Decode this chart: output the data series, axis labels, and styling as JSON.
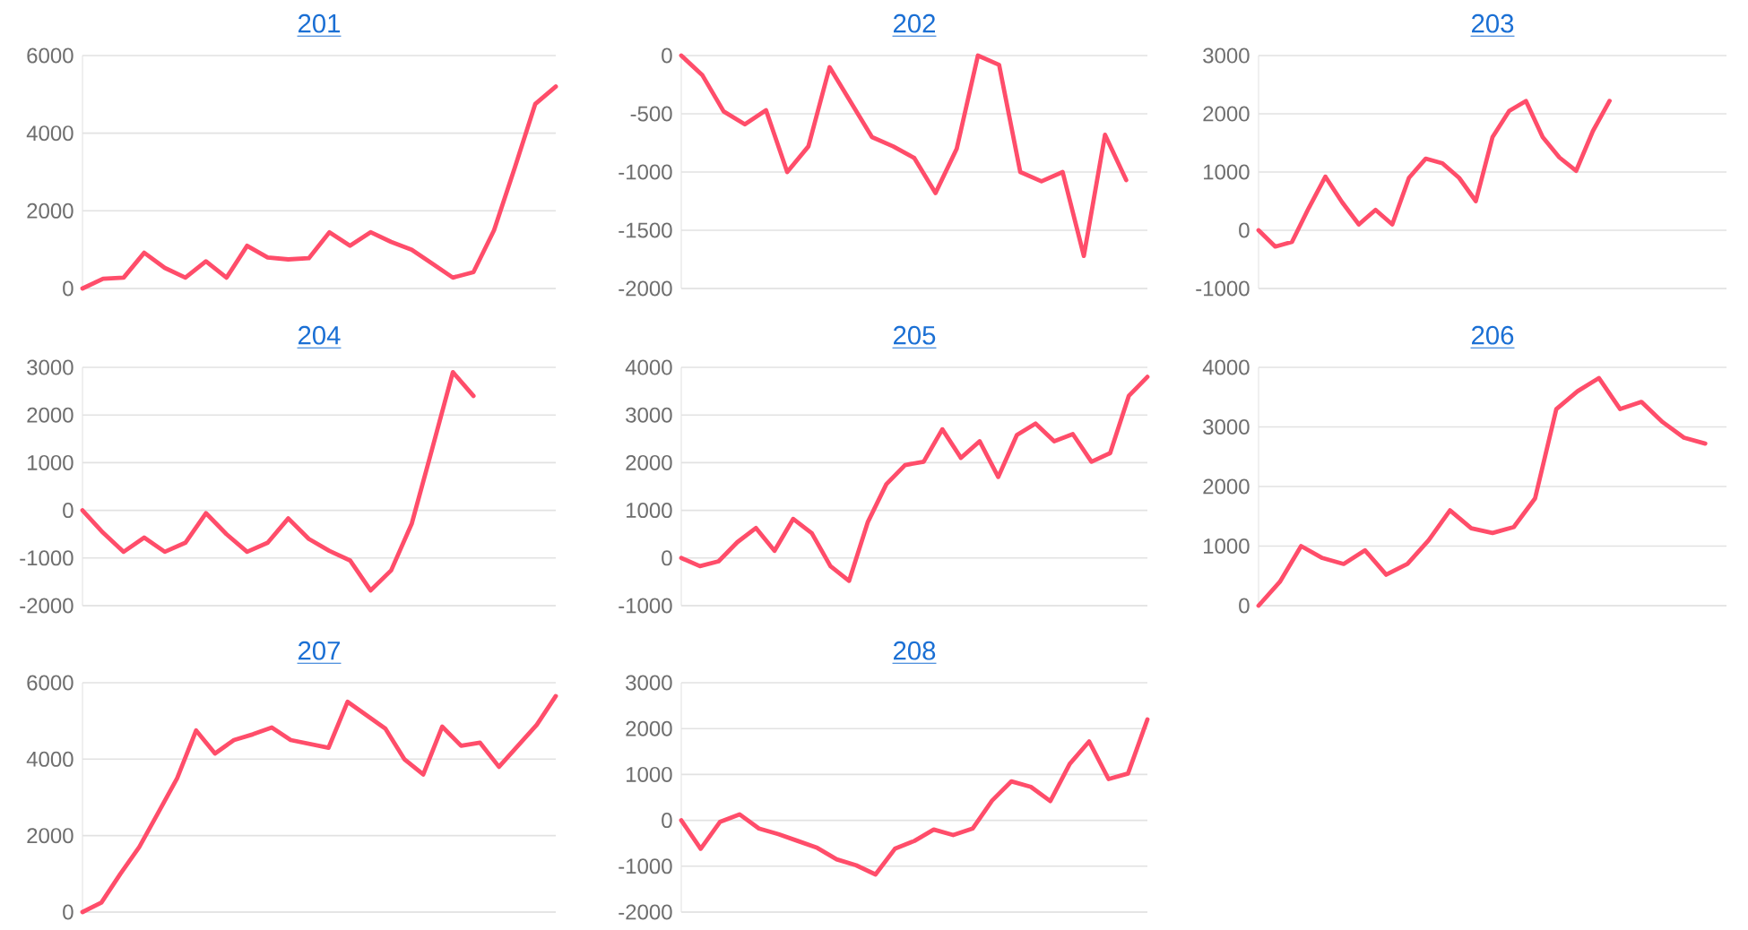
{
  "chart_data": [
    {
      "type": "line",
      "title": "201",
      "categories": [
        null,
        null,
        null,
        null,
        null,
        null,
        null,
        null,
        null,
        null,
        null,
        null,
        null,
        null,
        null,
        null,
        null,
        null,
        null,
        null,
        null,
        null,
        null,
        null
      ],
      "values": [
        0,
        250,
        280,
        920,
        530,
        280,
        700,
        280,
        1100,
        800,
        750,
        780,
        1450,
        1100,
        1450,
        1200,
        1000,
        640,
        280,
        420,
        1500,
        3100,
        4750,
        5200
      ],
      "color": "#ff4d6a",
      "ylim": [
        0,
        6000
      ],
      "yticks": [
        0,
        2000,
        4000,
        6000
      ],
      "grid": "y",
      "tick_labels": "y"
    },
    {
      "type": "line",
      "title": "202",
      "categories": [
        null,
        null,
        null,
        null,
        null,
        null,
        null,
        null,
        null,
        null,
        null,
        null,
        null,
        null,
        null,
        null,
        null,
        null,
        null,
        null,
        null,
        null,
        null
      ],
      "values": [
        0,
        -170,
        -480,
        -590,
        -470,
        -1000,
        -780,
        -100,
        -400,
        -700,
        -780,
        -880,
        -1180,
        -800,
        0,
        -80,
        -1000,
        -1080,
        -1000,
        -1720,
        -680,
        -1070,
        null
      ],
      "color": "#ff4d6a",
      "ylim": [
        -2000,
        0
      ],
      "yticks": [
        -2000,
        -1500,
        -1000,
        -500,
        0
      ],
      "grid": "y",
      "tick_labels": "y"
    },
    {
      "type": "line",
      "title": "203",
      "categories": [
        null,
        null,
        null,
        null,
        null,
        null,
        null,
        null,
        null,
        null,
        null,
        null,
        null,
        null,
        null,
        null,
        null,
        null,
        null,
        null,
        null,
        null,
        null,
        null,
        null,
        null,
        null,
        null,
        null
      ],
      "values": [
        0,
        -280,
        -200,
        380,
        920,
        480,
        100,
        350,
        100,
        900,
        1230,
        1150,
        900,
        500,
        1600,
        2050,
        2220,
        1600,
        1250,
        1020,
        1700,
        2220,
        null,
        null,
        null,
        null,
        null,
        null,
        null
      ],
      "color": "#ff4d6a",
      "ylim": [
        -1000,
        3000
      ],
      "yticks": [
        -1000,
        0,
        1000,
        2000,
        3000
      ],
      "grid": "y",
      "tick_labels": "y"
    },
    {
      "type": "line",
      "title": "204",
      "categories": [
        null,
        null,
        null,
        null,
        null,
        null,
        null,
        null,
        null,
        null,
        null,
        null,
        null,
        null,
        null,
        null,
        null,
        null,
        null,
        null,
        null,
        null,
        null,
        null
      ],
      "values": [
        0,
        -470,
        -870,
        -570,
        -870,
        -680,
        -60,
        -500,
        -870,
        -680,
        -170,
        -600,
        -850,
        -1050,
        -1680,
        -1260,
        -280,
        1300,
        2900,
        2400,
        null,
        null,
        null,
        null
      ],
      "color": "#ff4d6a",
      "ylim": [
        -2000,
        3000
      ],
      "yticks": [
        -2000,
        -1000,
        0,
        1000,
        2000,
        3000
      ],
      "grid": "y",
      "tick_labels": "y"
    },
    {
      "type": "line",
      "title": "205",
      "categories": [
        null,
        null,
        null,
        null,
        null,
        null,
        null,
        null,
        null,
        null,
        null,
        null,
        null,
        null,
        null,
        null,
        null,
        null,
        null,
        null,
        null,
        null,
        null,
        null,
        null,
        null
      ],
      "values": [
        0,
        -170,
        -70,
        330,
        630,
        150,
        820,
        520,
        -170,
        -480,
        750,
        1550,
        1950,
        2020,
        2700,
        2100,
        2450,
        1700,
        2580,
        2820,
        2450,
        2600,
        2020,
        2200,
        3400,
        3800
      ],
      "color": "#ff4d6a",
      "ylim": [
        -1000,
        4000
      ],
      "yticks": [
        -1000,
        0,
        1000,
        2000,
        3000,
        4000
      ],
      "grid": "y",
      "tick_labels": "y"
    },
    {
      "type": "line",
      "title": "206",
      "categories": [
        null,
        null,
        null,
        null,
        null,
        null,
        null,
        null,
        null,
        null,
        null,
        null,
        null,
        null,
        null,
        null,
        null,
        null,
        null,
        null,
        null,
        null,
        null
      ],
      "values": [
        0,
        400,
        1000,
        800,
        700,
        930,
        520,
        700,
        1100,
        1600,
        1300,
        1220,
        1320,
        1800,
        3300,
        3600,
        3820,
        3300,
        3420,
        3080,
        2820,
        2720,
        null
      ],
      "color": "#ff4d6a",
      "ylim": [
        0,
        4000
      ],
      "yticks": [
        0,
        1000,
        2000,
        3000,
        4000
      ],
      "grid": "y",
      "tick_labels": "y"
    },
    {
      "type": "line",
      "title": "207",
      "categories": [
        null,
        null,
        null,
        null,
        null,
        null,
        null,
        null,
        null,
        null,
        null,
        null,
        null,
        null,
        null,
        null,
        null,
        null,
        null,
        null,
        null,
        null,
        null,
        null,
        null,
        null
      ],
      "values": [
        0,
        250,
        1000,
        1700,
        2600,
        3500,
        4750,
        4150,
        4500,
        4650,
        4830,
        4500,
        4400,
        4300,
        5500,
        5150,
        4800,
        4000,
        3600,
        4850,
        4350,
        4430,
        3800,
        4350,
        4900,
        5650
      ],
      "color": "#ff4d6a",
      "ylim": [
        0,
        6000
      ],
      "yticks": [
        0,
        2000,
        4000,
        6000
      ],
      "grid": "y",
      "tick_labels": "y"
    },
    {
      "type": "line",
      "title": "208",
      "categories": [
        null,
        null,
        null,
        null,
        null,
        null,
        null,
        null,
        null,
        null,
        null,
        null,
        null,
        null,
        null,
        null,
        null,
        null,
        null,
        null,
        null,
        null,
        null,
        null,
        null
      ],
      "values": [
        0,
        -620,
        -30,
        130,
        -180,
        -300,
        -450,
        -600,
        -850,
        -980,
        -1180,
        -620,
        -450,
        -200,
        -320,
        -180,
        430,
        850,
        730,
        420,
        1230,
        1720,
        900,
        1020,
        2200
      ],
      "color": "#ff4d6a",
      "ylim": [
        -2000,
        3000
      ],
      "yticks": [
        -2000,
        -1000,
        0,
        1000,
        2000,
        3000
      ],
      "grid": "y",
      "tick_labels": "y"
    }
  ]
}
